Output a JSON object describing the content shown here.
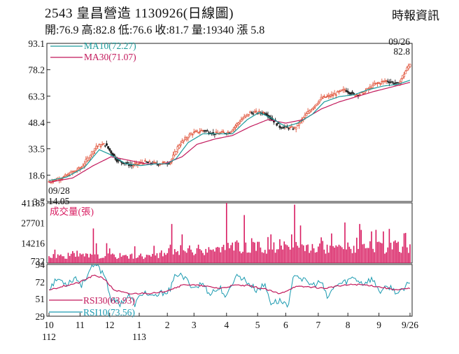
{
  "header": {
    "title": "2543  皇昌營造 1130926(日線圖)",
    "source": "時報資訊",
    "stats": "開:76.9 高:82.8 低:76.6 收:81.7 量:19340 漲 5.8"
  },
  "colors": {
    "up": "#e0533a",
    "down": "#222222",
    "ma10": "#1a9a9a",
    "ma30": "#c2185b",
    "volume": "#d81b60",
    "rsi30": "#c2185b",
    "rsi10": "#1a9ab0"
  },
  "chart_data": {
    "type": "line",
    "price_panel": {
      "yticks": [
        "93.1",
        "78.2",
        "63.3",
        "48.4",
        "33.5",
        "18.6",
        "3.7"
      ],
      "ylim": [
        3.7,
        93.1
      ],
      "legend": [
        {
          "name": "MA10(72.27)",
          "color": "#1a9a9a"
        },
        {
          "name": "MA30(71.07)",
          "color": "#c2185b"
        }
      ],
      "annotations": {
        "low_date": "09/28",
        "low_value": "14.05",
        "last_date": "09/26",
        "last_value": "82.8"
      },
      "close_keypoints": [
        [
          0,
          15
        ],
        [
          10,
          17.5
        ],
        [
          22,
          23
        ],
        [
          32,
          35
        ],
        [
          38,
          36
        ],
        [
          46,
          27
        ],
        [
          56,
          24
        ],
        [
          64,
          26
        ],
        [
          74,
          25
        ],
        [
          82,
          26
        ],
        [
          88,
          36
        ],
        [
          96,
          42
        ],
        [
          104,
          44
        ],
        [
          112,
          42
        ],
        [
          122,
          43
        ],
        [
          130,
          50
        ],
        [
          136,
          54
        ],
        [
          146,
          54
        ],
        [
          156,
          46
        ],
        [
          166,
          45
        ],
        [
          176,
          55
        ],
        [
          184,
          62
        ],
        [
          192,
          64
        ],
        [
          200,
          67
        ],
        [
          206,
          64
        ],
        [
          212,
          65
        ],
        [
          220,
          70
        ],
        [
          228,
          72
        ],
        [
          236,
          70
        ],
        [
          240,
          76
        ],
        [
          244,
          81.7
        ]
      ],
      "ma10_keypoints": [
        [
          0,
          15.5
        ],
        [
          12,
          17.5
        ],
        [
          24,
          23
        ],
        [
          34,
          33
        ],
        [
          42,
          30
        ],
        [
          52,
          25
        ],
        [
          62,
          24
        ],
        [
          72,
          25
        ],
        [
          80,
          25
        ],
        [
          86,
          28
        ],
        [
          94,
          37
        ],
        [
          104,
          42
        ],
        [
          112,
          42
        ],
        [
          124,
          42
        ],
        [
          134,
          50
        ],
        [
          142,
          54
        ],
        [
          150,
          51
        ],
        [
          160,
          46
        ],
        [
          168,
          48
        ],
        [
          178,
          53
        ],
        [
          186,
          60
        ],
        [
          196,
          63
        ],
        [
          206,
          64
        ],
        [
          216,
          67
        ],
        [
          226,
          69
        ],
        [
          236,
          70
        ],
        [
          244,
          72.27
        ]
      ],
      "ma30_keypoints": [
        [
          0,
          14.5
        ],
        [
          16,
          17
        ],
        [
          30,
          24
        ],
        [
          42,
          29
        ],
        [
          54,
          27
        ],
        [
          66,
          25
        ],
        [
          78,
          25
        ],
        [
          90,
          29
        ],
        [
          100,
          36
        ],
        [
          112,
          39
        ],
        [
          124,
          41
        ],
        [
          136,
          46
        ],
        [
          148,
          50
        ],
        [
          160,
          48
        ],
        [
          172,
          50
        ],
        [
          184,
          56
        ],
        [
          196,
          60
        ],
        [
          208,
          63
        ],
        [
          220,
          66
        ],
        [
          232,
          68.5
        ],
        [
          244,
          71.07
        ]
      ]
    },
    "volume_panel": {
      "title": "成交量(張)",
      "yticks": [
        "41185",
        "27701",
        "14216",
        "732"
      ],
      "ylim": [
        732,
        41185
      ],
      "spikes": [
        [
          30,
          24000
        ],
        [
          58,
          12000
        ],
        [
          83,
          27000
        ],
        [
          90,
          20000
        ],
        [
          120,
          41185
        ],
        [
          127,
          16000
        ],
        [
          132,
          33000
        ],
        [
          142,
          15000
        ],
        [
          150,
          20000
        ],
        [
          166,
          40000
        ],
        [
          170,
          26000
        ],
        [
          184,
          18000
        ],
        [
          200,
          28000
        ],
        [
          210,
          27000
        ],
        [
          218,
          22000
        ],
        [
          226,
          22000
        ],
        [
          234,
          16000
        ],
        [
          241,
          21000
        ]
      ]
    },
    "rsi_panel": {
      "yticks": [
        "94",
        "72",
        "51",
        "29"
      ],
      "ylim": [
        29,
        94
      ],
      "legend": [
        {
          "name": "RSI30(63.93)",
          "color": "#c2185b"
        },
        {
          "name": "RSI10(73.56)",
          "color": "#1a9ab0"
        }
      ],
      "rsi10_keypoints": [
        [
          0,
          64
        ],
        [
          6,
          76
        ],
        [
          12,
          70
        ],
        [
          18,
          78
        ],
        [
          22,
          68
        ],
        [
          28,
          88
        ],
        [
          32,
          93
        ],
        [
          38,
          80
        ],
        [
          42,
          50
        ],
        [
          48,
          45
        ],
        [
          54,
          55
        ],
        [
          58,
          44
        ],
        [
          64,
          60
        ],
        [
          70,
          52
        ],
        [
          76,
          58
        ],
        [
          82,
          62
        ],
        [
          86,
          83
        ],
        [
          92,
          76
        ],
        [
          98,
          65
        ],
        [
          104,
          70
        ],
        [
          108,
          58
        ],
        [
          116,
          64
        ],
        [
          120,
          52
        ],
        [
          126,
          80
        ],
        [
          130,
          78
        ],
        [
          134,
          72
        ],
        [
          140,
          62
        ],
        [
          146,
          68
        ],
        [
          150,
          46
        ],
        [
          156,
          48
        ],
        [
          162,
          44
        ],
        [
          166,
          84
        ],
        [
          172,
          74
        ],
        [
          178,
          68
        ],
        [
          184,
          72
        ],
        [
          188,
          52
        ],
        [
          194,
          68
        ],
        [
          200,
          72
        ],
        [
          206,
          78
        ],
        [
          212,
          70
        ],
        [
          218,
          76
        ],
        [
          224,
          60
        ],
        [
          230,
          66
        ],
        [
          236,
          58
        ],
        [
          240,
          62
        ],
        [
          244,
          73.56
        ]
      ],
      "rsi30_keypoints": [
        [
          0,
          62
        ],
        [
          10,
          67
        ],
        [
          20,
          71
        ],
        [
          30,
          80
        ],
        [
          36,
          78
        ],
        [
          44,
          62
        ],
        [
          54,
          57
        ],
        [
          64,
          58
        ],
        [
          74,
          58
        ],
        [
          84,
          64
        ],
        [
          92,
          69
        ],
        [
          104,
          67
        ],
        [
          116,
          64
        ],
        [
          126,
          68
        ],
        [
          136,
          67
        ],
        [
          146,
          63
        ],
        [
          156,
          57
        ],
        [
          166,
          66
        ],
        [
          176,
          66
        ],
        [
          186,
          64
        ],
        [
          196,
          67
        ],
        [
          206,
          69
        ],
        [
          216,
          68
        ],
        [
          226,
          65
        ],
        [
          236,
          62
        ],
        [
          244,
          63.93
        ]
      ]
    },
    "x_axis": {
      "tick_labels": [
        "10",
        "11",
        "12",
        "1",
        "2",
        "3",
        "4",
        "5",
        "6",
        "7",
        "8",
        "9",
        "9/26"
      ],
      "tick_index": [
        0,
        21,
        41,
        61,
        80,
        98,
        120,
        141,
        160,
        182,
        202,
        223,
        244
      ],
      "year_labels": [
        {
          "text": "112",
          "index": 0
        },
        {
          "text": "113",
          "index": 61
        }
      ]
    }
  }
}
